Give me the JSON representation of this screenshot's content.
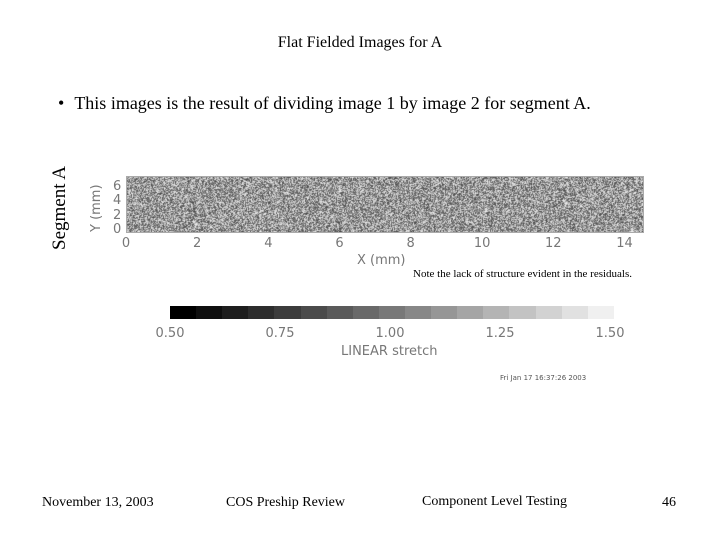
{
  "slide": {
    "title": "Flat Fielded Images for A",
    "bullet": "This images is the result of dividing image 1 by image 2 for segment A.",
    "bullet_marker": "•",
    "side_label": "Segment A",
    "note": "Note the lack of structure evident in the residuals.",
    "timestamp": "Fri Jan 17 16:37:26 2003"
  },
  "image_plot": {
    "x_axis_title": "X (mm)",
    "x_ticks": [
      "0",
      "2",
      "4",
      "6",
      "8",
      "10",
      "12",
      "14"
    ],
    "x_range": [
      0,
      14.5
    ],
    "y_axis_title": "Y (mm)",
    "y_ticks": [
      "0",
      "2",
      "4",
      "6"
    ],
    "y_range": [
      0,
      7.5
    ]
  },
  "colorbar": {
    "ticks": [
      "0.50",
      "0.75",
      "1.00",
      "1.25",
      "1.50"
    ],
    "values": [
      0.5,
      0.75,
      1.0,
      1.25,
      1.5
    ],
    "range": [
      0.5,
      1.5
    ],
    "stretch_label": "LINEAR stretch"
  },
  "footer": {
    "date": "November 13, 2003",
    "review": "COS Preship Review",
    "level": "Component Level Testing",
    "page": "46"
  }
}
